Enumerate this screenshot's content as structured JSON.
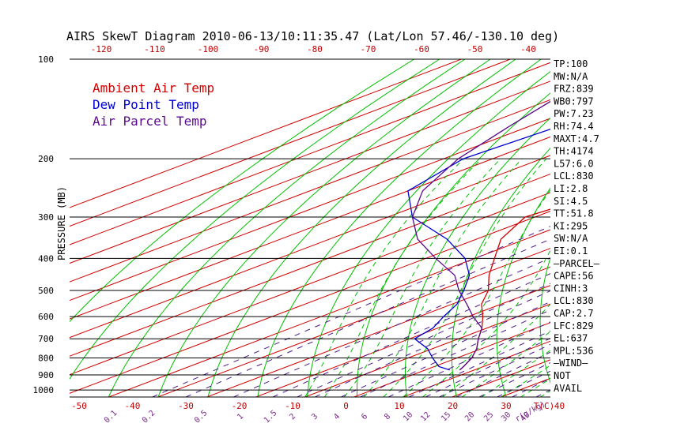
{
  "chart_data": {
    "type": "skew-t",
    "title": "AIRS SkewT Diagram 2010-06-13/10:11:35.47 (Lat/Lon 57.46/-130.10 deg)",
    "ylabel": "PRESSURE (MB)",
    "x_unit_label": "T(C)",
    "mixing_unit_label": "r(g/kg)",
    "pressure_ticks": [
      100,
      200,
      300,
      400,
      500,
      600,
      700,
      800,
      900,
      1000
    ],
    "top_temp_ticks": [
      -120,
      -110,
      -100,
      -90,
      -80,
      -70,
      -60,
      -50,
      -40
    ],
    "bottom_temp_ticks": [
      -50,
      -40,
      -30,
      -20,
      -10,
      0,
      10,
      20,
      30,
      40
    ],
    "mixing_ratio_ticks": [
      "0.1",
      "0.2",
      "0.5",
      "1",
      "1.5",
      "2",
      "3",
      "4",
      "6",
      "8",
      "10",
      "12",
      "15",
      "20",
      "25",
      "30",
      "40"
    ],
    "legend": [
      {
        "label": "Ambient Air Temp",
        "color": "#d00000"
      },
      {
        "label": "Dew Point Temp",
        "color": "#0000d0"
      },
      {
        "label": "Air Parcel Temp",
        "color": "#5a0a8a"
      }
    ],
    "series": [
      {
        "name": "Ambient Air Temp",
        "color": "#d00000",
        "points": [
          [
            100,
            -46
          ],
          [
            120,
            -49
          ],
          [
            150,
            -50
          ],
          [
            185,
            -51
          ],
          [
            200,
            -50
          ],
          [
            215,
            -55
          ],
          [
            250,
            -59
          ],
          [
            300,
            -62
          ],
          [
            350,
            -55
          ],
          [
            400,
            -46
          ],
          [
            450,
            -38
          ],
          [
            500,
            -30
          ],
          [
            550,
            -24
          ],
          [
            600,
            -17
          ],
          [
            650,
            -11
          ],
          [
            700,
            -6
          ],
          [
            750,
            -1
          ],
          [
            800,
            3
          ],
          [
            850,
            6
          ],
          [
            870,
            7
          ]
        ]
      },
      {
        "name": "Dew Point Temp",
        "color": "#0000d0",
        "points": [
          [
            100,
            -92
          ],
          [
            130,
            -99
          ],
          [
            160,
            -104
          ],
          [
            200,
            -106
          ],
          [
            250,
            -100
          ],
          [
            300,
            -85
          ],
          [
            350,
            -66
          ],
          [
            400,
            -52
          ],
          [
            450,
            -42
          ],
          [
            500,
            -35
          ],
          [
            550,
            -29
          ],
          [
            600,
            -25
          ],
          [
            650,
            -21
          ],
          [
            700,
            -19
          ],
          [
            750,
            -11
          ],
          [
            800,
            -5
          ],
          [
            850,
            1
          ],
          [
            870,
            5
          ]
        ]
      },
      {
        "name": "Air Parcel Temp",
        "color": "#5a0a8a",
        "points": [
          [
            100,
            -125
          ],
          [
            130,
            -120
          ],
          [
            160,
            -114
          ],
          [
            200,
            -107
          ],
          [
            250,
            -97
          ],
          [
            300,
            -85
          ],
          [
            350,
            -72
          ],
          [
            400,
            -58
          ],
          [
            450,
            -45
          ],
          [
            500,
            -36
          ],
          [
            550,
            -27
          ],
          [
            600,
            -19
          ],
          [
            650,
            -11
          ],
          [
            700,
            -6
          ],
          [
            750,
            -1
          ],
          [
            800,
            3
          ],
          [
            850,
            6
          ],
          [
            870,
            7
          ]
        ]
      }
    ],
    "side_panel": [
      "TP:100",
      "MW:N/A",
      "FRZ:839",
      "WB0:797",
      "PW:7.23",
      "RH:74.4",
      "MAXT:4.7",
      "TH:4174",
      "L57:6.0",
      "LCL:830",
      "LI:2.8",
      "SI:4.5",
      "TT:51.8",
      "KI:295",
      "SW:N/A",
      "EI:0.1",
      "—PARCEL—",
      "CAPE:56",
      "CINH:3",
      "LCL:830",
      "CAP:2.7",
      "LFC:829",
      "EL:637",
      "MPL:536",
      "—WIND—",
      "NOT",
      "AVAIL"
    ],
    "colors": {
      "isotherm": "#d00000",
      "dry_adiabat": "#00c000",
      "moist_adiabat": "#00c000",
      "mixing_ratio": "#4a1a8a",
      "isobar": "#000000"
    }
  }
}
